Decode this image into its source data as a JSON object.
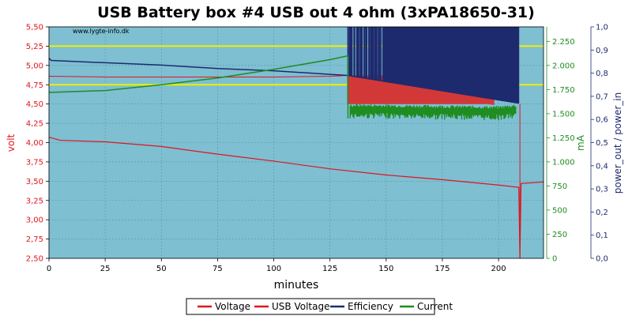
{
  "chart_data": {
    "type": "line",
    "title": "USB Battery box #4 USB out 4 ohm (3xPA18650-31)",
    "watermark": "www.lygte-info.dk",
    "xlabel": "minutes",
    "xlim": [
      0,
      220
    ],
    "x_ticks": [
      "0",
      "25",
      "50",
      "75",
      "100",
      "125",
      "150",
      "175",
      "200"
    ],
    "y_axes": {
      "volt": {
        "label": "volt",
        "color": "#e0141e",
        "ylim": [
          2.5,
          5.5
        ],
        "ticks": [
          "2,50",
          "2,75",
          "3,00",
          "3,25",
          "3,50",
          "3,75",
          "4,00",
          "4,25",
          "4,50",
          "4,75",
          "5,00",
          "5,25",
          "5,50"
        ]
      },
      "mA": {
        "label": "mA",
        "color": "#1f8c1f",
        "ylim": [
          0,
          2400
        ],
        "ticks": [
          "0",
          "250",
          "500",
          "750",
          "1.000",
          "1.250",
          "1.500",
          "1.750",
          "2.000",
          "2.250"
        ]
      },
      "ratio": {
        "label": "power_out / power_in",
        "color": "#1e2a6e",
        "ylim": [
          0,
          1
        ],
        "ticks": [
          "0,0",
          "0,1",
          "0,2",
          "0,3",
          "0,4",
          "0,5",
          "0,6",
          "0,7",
          "0,8",
          "0,9",
          "1,0"
        ]
      }
    },
    "reference_lines": {
      "axis": "volt",
      "values": [
        5.25,
        4.75
      ],
      "color": "#f0f000"
    },
    "series": [
      {
        "name": "Voltage",
        "axis": "volt",
        "color": "#e0141e",
        "x": [
          0,
          5,
          25,
          50,
          75,
          100,
          125,
          150,
          175,
          200,
          209,
          209.5,
          210,
          220
        ],
        "y": [
          4.07,
          4.03,
          4.01,
          3.95,
          3.85,
          3.76,
          3.66,
          3.58,
          3.52,
          3.45,
          3.42,
          2.5,
          3.47,
          3.49
        ]
      },
      {
        "name": "USB Voltage",
        "axis": "volt",
        "color": "#e0141e",
        "x": [
          0,
          25,
          50,
          75,
          100,
          125,
          133,
          209,
          209.5,
          220
        ],
        "y": [
          4.86,
          4.85,
          4.85,
          4.85,
          4.85,
          4.86,
          4.87,
          4.87,
          2.5,
          2.5
        ],
        "noisy_from_x": 133,
        "noisy_low": [
          4.5,
          4.5,
          4.5,
          4.47
        ]
      },
      {
        "name": "Efficiency",
        "axis": "ratio",
        "color": "#1e2a6e",
        "x": [
          0,
          1,
          25,
          50,
          75,
          100,
          125,
          133,
          209
        ],
        "y": [
          0.865,
          0.855,
          0.845,
          0.835,
          0.82,
          0.81,
          0.795,
          0.79,
          0.67
        ],
        "noisy_from_x": 133
      },
      {
        "name": "Current",
        "axis": "mA",
        "color": "#1f8c1f",
        "x": [
          0,
          25,
          50,
          75,
          100,
          125,
          133,
          140,
          170,
          200,
          208
        ],
        "y": [
          1720,
          1740,
          1800,
          1870,
          1960,
          2060,
          2100,
          1530,
          1520,
          1510,
          1530
        ],
        "noisy_from_x": 133
      }
    ],
    "legend": {
      "placement": "bottom",
      "entries": [
        {
          "name": "Voltage",
          "color": "#e0141e"
        },
        {
          "name": "USB Voltage",
          "color": "#e0141e"
        },
        {
          "name": "Efficiency",
          "color": "#1e2a6e"
        },
        {
          "name": "Current",
          "color": "#1f8c1f"
        }
      ]
    },
    "plot_background": "#7ebfd2",
    "grid": true
  }
}
